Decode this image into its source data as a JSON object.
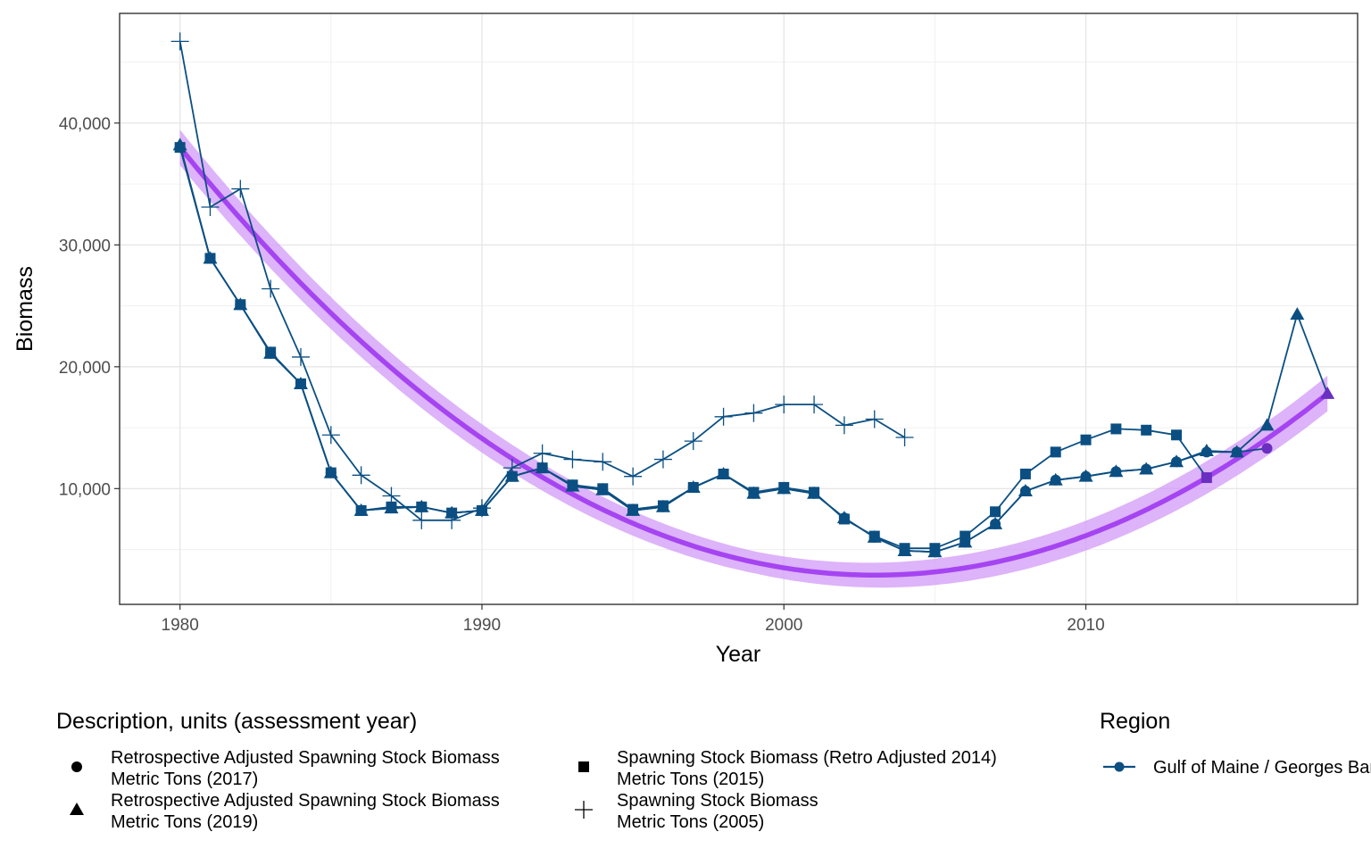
{
  "chart_data": {
    "type": "line",
    "title": "",
    "xlabel": "Year",
    "ylabel": "Biomass",
    "xlim": [
      1978,
      2019
    ],
    "ylim": [
      500,
      49000
    ],
    "x_ticks": [
      1980,
      1990,
      2000,
      2010
    ],
    "x_tick_labels": [
      "1980",
      "1990",
      "2000",
      "2010"
    ],
    "y_ticks": [
      10000,
      20000,
      30000,
      40000
    ],
    "y_tick_labels": [
      "10,000",
      "20,000",
      "30,000",
      "40,000"
    ],
    "grid": true,
    "colors": {
      "series": "#0b4f82",
      "trend": "#9b30f0",
      "trend_band": "#d29af7"
    },
    "series": [
      {
        "legend_label": [
          "Retrospective Adjusted Spawning Stock Biomass",
          "Metric Tons (2017)"
        ],
        "marker": "circle",
        "x": [
          1980,
          1981,
          1982,
          1983,
          1984,
          1985,
          1986,
          1987,
          1988,
          1989,
          1990,
          1991,
          1992,
          1993,
          1994,
          1995,
          1996,
          1997,
          1998,
          1999,
          2000,
          2001,
          2002,
          2003,
          2004,
          2005,
          2006,
          2007,
          2008,
          2009,
          2010,
          2011,
          2012,
          2013,
          2014,
          2015,
          2016
        ],
        "y": [
          38000,
          28900,
          25100,
          21100,
          18600,
          11300,
          8200,
          8400,
          8500,
          8000,
          8200,
          11000,
          11700,
          10200,
          9900,
          8200,
          8500,
          10100,
          11200,
          9600,
          10000,
          9600,
          7600,
          6000,
          4900,
          4800,
          5600,
          7100,
          9800,
          10700,
          11000,
          11400,
          11600,
          12200,
          13000,
          13000,
          13300
        ]
      },
      {
        "legend_label": [
          "Retrospective Adjusted Spawning Stock Biomass",
          "Metric Tons (2019)"
        ],
        "marker": "triangle",
        "x": [
          1980,
          1981,
          1982,
          1983,
          1984,
          1985,
          1986,
          1987,
          1988,
          1989,
          1990,
          1991,
          1992,
          1993,
          1994,
          1995,
          1996,
          1997,
          1998,
          1999,
          2000,
          2001,
          2002,
          2003,
          2004,
          2005,
          2006,
          2007,
          2008,
          2009,
          2010,
          2011,
          2012,
          2013,
          2014,
          2015,
          2016,
          2017,
          2018
        ],
        "y": [
          38200,
          28900,
          25100,
          21100,
          18600,
          11300,
          8200,
          8400,
          8500,
          8000,
          8200,
          11000,
          11700,
          10200,
          9900,
          8200,
          8500,
          10100,
          11200,
          9600,
          10000,
          9600,
          7600,
          6000,
          4900,
          4800,
          5600,
          7100,
          9800,
          10700,
          11000,
          11400,
          11600,
          12200,
          13100,
          13000,
          15200,
          24300,
          17800
        ]
      },
      {
        "legend_label": [
          "Spawning Stock Biomass (Retro Adjusted 2014)",
          "Metric Tons (2015)"
        ],
        "marker": "square",
        "x": [
          1980,
          1981,
          1982,
          1983,
          1984,
          1985,
          1986,
          1987,
          1988,
          1989,
          1990,
          1991,
          1992,
          1993,
          1994,
          1995,
          1996,
          1997,
          1998,
          1999,
          2000,
          2001,
          2002,
          2003,
          2004,
          2005,
          2006,
          2007,
          2008,
          2009,
          2010,
          2011,
          2012,
          2013,
          2014
        ],
        "y": [
          38000,
          28900,
          25100,
          21200,
          18600,
          11300,
          8200,
          8500,
          8500,
          8000,
          8200,
          11000,
          11700,
          10300,
          10000,
          8300,
          8600,
          10100,
          11200,
          9700,
          10100,
          9700,
          7500,
          6100,
          5100,
          5100,
          6100,
          8100,
          11200,
          13000,
          14000,
          14900,
          14800,
          14400,
          10900
        ]
      },
      {
        "legend_label": [
          "Spawning Stock Biomass",
          "Metric Tons (2005)"
        ],
        "marker": "plus",
        "x": [
          1980,
          1981,
          1982,
          1983,
          1984,
          1985,
          1986,
          1987,
          1988,
          1989,
          1990,
          1991,
          1992,
          1993,
          1994,
          1995,
          1996,
          1997,
          1998,
          1999,
          2000,
          2001,
          2002,
          2003,
          2004
        ],
        "y": [
          46700,
          33100,
          34600,
          26400,
          20800,
          14400,
          11100,
          9400,
          7400,
          7400,
          8400,
          11700,
          12900,
          12400,
          12200,
          11000,
          12400,
          13900,
          15900,
          16200,
          16900,
          16900,
          15200,
          15700,
          14200
        ]
      }
    ],
    "trend": {
      "x": [
        1980,
        2003.1,
        2018
      ],
      "y": [
        38000,
        2900,
        17800
      ]
    },
    "legend_position": "bottom",
    "legend": {
      "description_title": "Description, units (assessment year)",
      "region_title": "Region",
      "region_entries": [
        "Gulf of Maine / Georges Bank"
      ]
    }
  }
}
